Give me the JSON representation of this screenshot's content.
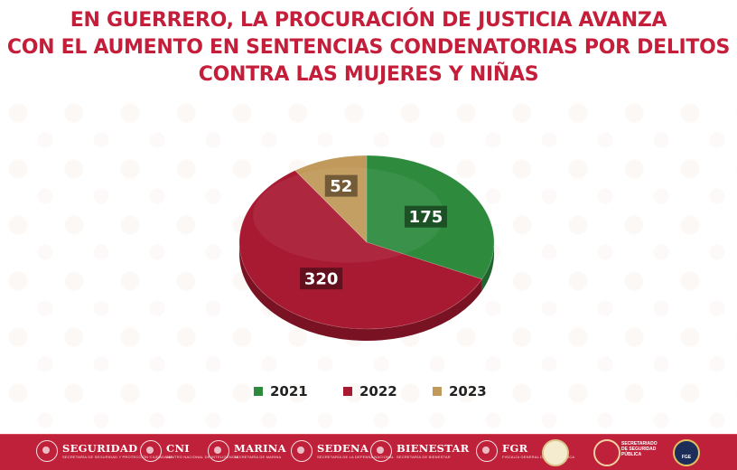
{
  "title_lines": [
    "EN GUERRERO, LA PROCURACIÓN DE JUSTICIA AVANZA",
    "CON EL AUMENTO EN SENTENCIAS CONDENATORIAS POR DELITOS",
    "CONTRA LAS MUJERES Y NIÑAS"
  ],
  "chart_data": {
    "type": "pie",
    "style": "3d",
    "legend_position": "bottom",
    "slices": [
      {
        "label": "2021",
        "value": 175,
        "color": "#2e8b3e"
      },
      {
        "label": "2022",
        "value": 320,
        "color": "#a81a32"
      },
      {
        "label": "2023",
        "value": 52,
        "color": "#c19a5b"
      }
    ]
  },
  "legend": [
    {
      "label": "2021",
      "color": "#2e8b3e"
    },
    {
      "label": "2022",
      "color": "#a81a32"
    },
    {
      "label": "2023",
      "color": "#c19a5b"
    }
  ],
  "footer": {
    "logos": [
      {
        "name": "SEGURIDAD",
        "sub": "SECRETARÍA DE SEGURIDAD Y PROTECCIÓN CIUDADANA"
      },
      {
        "name": "CNI",
        "sub": "CENTRO NACIONAL DE INTELIGENCIA"
      },
      {
        "name": "MARINA",
        "sub": "SECRETARÍA DE MARINA"
      },
      {
        "name": "SEDENA",
        "sub": "SECRETARÍA DE LA DEFENSA NACIONAL"
      },
      {
        "name": "BIENESTAR",
        "sub": "SECRETARÍA DE BIENESTAR"
      },
      {
        "name": "FGR",
        "sub": "FISCALÍA GENERAL DE LA REPÚBLICA"
      }
    ],
    "seguridad_publica": "SECRETARIADO DE SEGURIDAD PÚBLICA",
    "fge": "FGE"
  }
}
